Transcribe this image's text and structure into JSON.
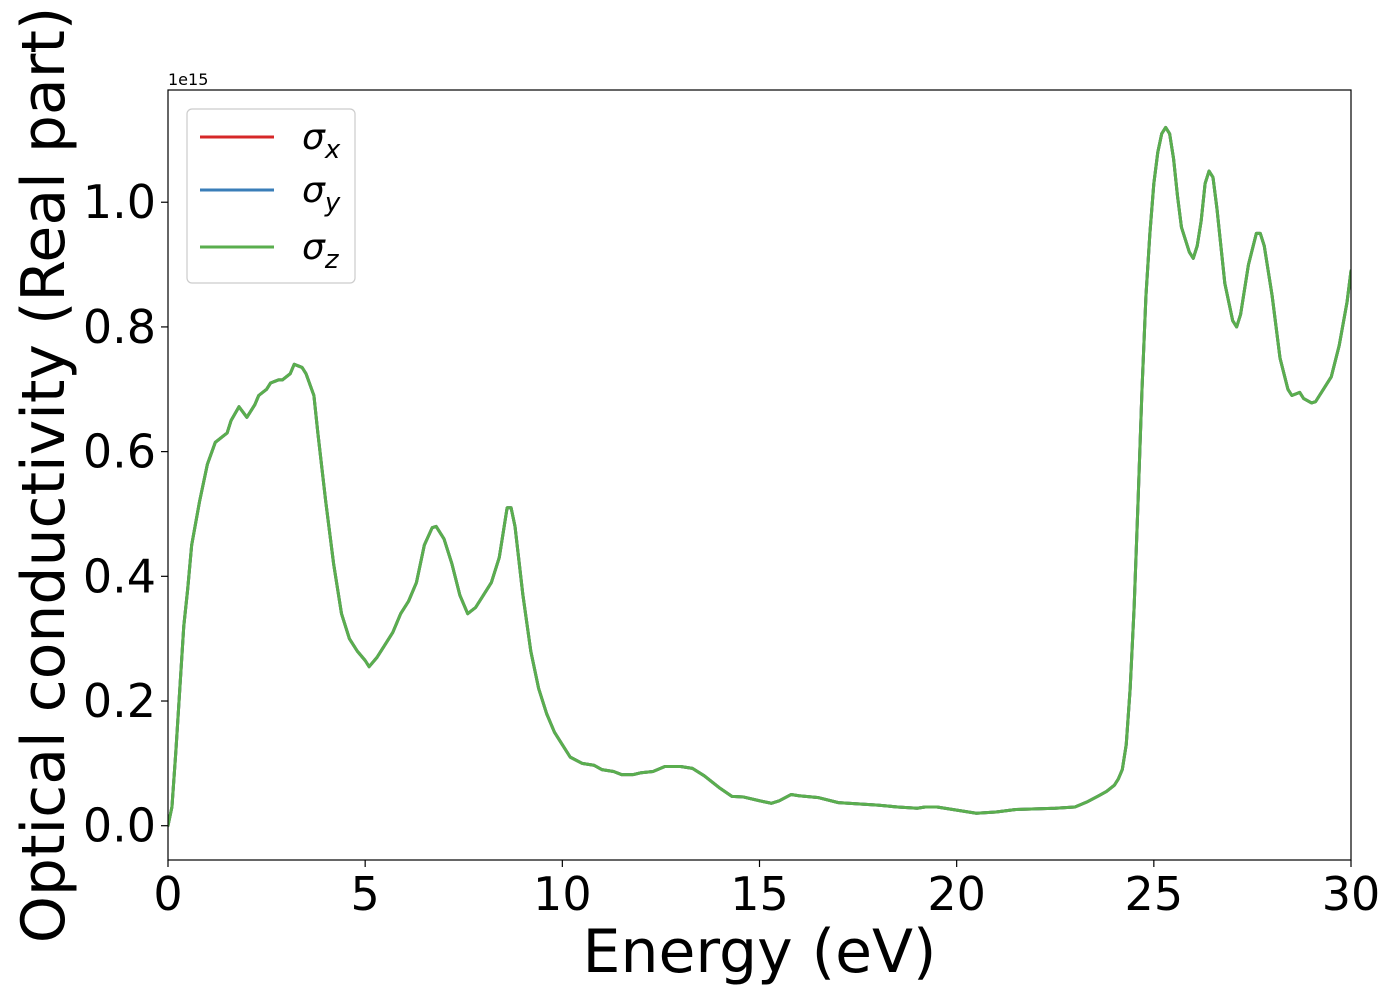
{
  "chart_data": {
    "type": "line",
    "title": "",
    "xlabel": "Energy (eV)",
    "ylabel": "Optical conductivity (Real part)",
    "offset_label": "1e15",
    "xlim": [
      0,
      30
    ],
    "ylim": [
      -0.055,
      1.18
    ],
    "x_ticks": [
      0,
      5,
      10,
      15,
      20,
      25,
      30
    ],
    "x_tick_labels": [
      "0",
      "5",
      "10",
      "15",
      "20",
      "25",
      "30"
    ],
    "y_ticks": [
      0.0,
      0.2,
      0.4,
      0.6,
      0.8,
      1.0
    ],
    "y_tick_labels": [
      "0.0",
      "0.2",
      "0.4",
      "0.6",
      "0.8",
      "1.0"
    ],
    "grid": false,
    "legend_position": "upper-left",
    "x": [
      0,
      0.1,
      0.2,
      0.3,
      0.4,
      0.5,
      0.6,
      0.8,
      1.0,
      1.2,
      1.3,
      1.5,
      1.6,
      1.8,
      2.0,
      2.2,
      2.3,
      2.5,
      2.6,
      2.8,
      2.9,
      3.1,
      3.2,
      3.4,
      3.5,
      3.7,
      3.8,
      4.0,
      4.2,
      4.4,
      4.6,
      4.8,
      5.0,
      5.1,
      5.3,
      5.5,
      5.7,
      5.9,
      6.1,
      6.3,
      6.5,
      6.7,
      6.8,
      7.0,
      7.2,
      7.4,
      7.6,
      7.8,
      8.0,
      8.2,
      8.4,
      8.6,
      8.7,
      8.8,
      9.0,
      9.2,
      9.4,
      9.6,
      9.8,
      10.0,
      10.2,
      10.5,
      10.8,
      11.0,
      11.3,
      11.5,
      11.8,
      12.0,
      12.3,
      12.6,
      13.0,
      13.3,
      13.6,
      14.0,
      14.3,
      14.6,
      15.0,
      15.3,
      15.5,
      15.8,
      16.0,
      16.5,
      17.0,
      17.5,
      18.0,
      18.5,
      19.0,
      19.2,
      19.5,
      20.0,
      20.5,
      21.0,
      21.5,
      22.0,
      22.5,
      23.0,
      23.3,
      23.6,
      23.8,
      24.0,
      24.1,
      24.2,
      24.3,
      24.4,
      24.5,
      24.6,
      24.7,
      24.8,
      24.9,
      25.0,
      25.1,
      25.2,
      25.3,
      25.4,
      25.5,
      25.6,
      25.7,
      25.9,
      26.0,
      26.1,
      26.2,
      26.3,
      26.4,
      26.5,
      26.6,
      26.7,
      26.8,
      27.0,
      27.1,
      27.2,
      27.4,
      27.6,
      27.7,
      27.8,
      28.0,
      28.2,
      28.4,
      28.5,
      28.7,
      28.8,
      29.0,
      29.1,
      29.3,
      29.5,
      29.7,
      29.9,
      30.0
    ],
    "series": [
      {
        "name": "σx",
        "legend_symbol": "σ",
        "legend_subscript": "x",
        "color": "#d62728",
        "values": [
          0.0,
          0.03,
          0.12,
          0.22,
          0.32,
          0.38,
          0.45,
          0.52,
          0.58,
          0.615,
          0.62,
          0.63,
          0.65,
          0.672,
          0.655,
          0.675,
          0.69,
          0.7,
          0.71,
          0.715,
          0.715,
          0.725,
          0.74,
          0.735,
          0.725,
          0.69,
          0.63,
          0.52,
          0.42,
          0.34,
          0.3,
          0.28,
          0.265,
          0.255,
          0.27,
          0.29,
          0.31,
          0.34,
          0.36,
          0.39,
          0.45,
          0.478,
          0.48,
          0.46,
          0.42,
          0.37,
          0.34,
          0.35,
          0.37,
          0.39,
          0.43,
          0.51,
          0.51,
          0.48,
          0.37,
          0.28,
          0.22,
          0.18,
          0.15,
          0.13,
          0.11,
          0.1,
          0.097,
          0.09,
          0.087,
          0.082,
          0.082,
          0.085,
          0.087,
          0.095,
          0.095,
          0.092,
          0.08,
          0.06,
          0.047,
          0.046,
          0.04,
          0.036,
          0.04,
          0.05,
          0.048,
          0.045,
          0.037,
          0.035,
          0.033,
          0.03,
          0.028,
          0.03,
          0.03,
          0.025,
          0.02,
          0.022,
          0.026,
          0.027,
          0.028,
          0.03,
          0.038,
          0.048,
          0.055,
          0.065,
          0.075,
          0.09,
          0.13,
          0.22,
          0.35,
          0.52,
          0.7,
          0.85,
          0.95,
          1.03,
          1.08,
          1.11,
          1.12,
          1.11,
          1.07,
          1.01,
          0.96,
          0.92,
          0.91,
          0.93,
          0.97,
          1.03,
          1.05,
          1.04,
          0.99,
          0.93,
          0.87,
          0.81,
          0.8,
          0.82,
          0.9,
          0.95,
          0.95,
          0.93,
          0.85,
          0.75,
          0.7,
          0.69,
          0.695,
          0.685,
          0.678,
          0.68,
          0.7,
          0.72,
          0.77,
          0.84,
          0.89
        ]
      },
      {
        "name": "σy",
        "legend_symbol": "σ",
        "legend_subscript": "y",
        "color": "#3a7eb8",
        "values": [
          0.0,
          0.03,
          0.12,
          0.22,
          0.32,
          0.38,
          0.45,
          0.52,
          0.58,
          0.615,
          0.62,
          0.63,
          0.65,
          0.672,
          0.655,
          0.675,
          0.69,
          0.7,
          0.71,
          0.715,
          0.715,
          0.725,
          0.74,
          0.735,
          0.725,
          0.69,
          0.63,
          0.52,
          0.42,
          0.34,
          0.3,
          0.28,
          0.265,
          0.255,
          0.27,
          0.29,
          0.31,
          0.34,
          0.36,
          0.39,
          0.45,
          0.478,
          0.48,
          0.46,
          0.42,
          0.37,
          0.34,
          0.35,
          0.37,
          0.39,
          0.43,
          0.51,
          0.51,
          0.48,
          0.37,
          0.28,
          0.22,
          0.18,
          0.15,
          0.13,
          0.11,
          0.1,
          0.097,
          0.09,
          0.087,
          0.082,
          0.082,
          0.085,
          0.087,
          0.095,
          0.095,
          0.092,
          0.08,
          0.06,
          0.047,
          0.046,
          0.04,
          0.036,
          0.04,
          0.05,
          0.048,
          0.045,
          0.037,
          0.035,
          0.033,
          0.03,
          0.028,
          0.03,
          0.03,
          0.025,
          0.02,
          0.022,
          0.026,
          0.027,
          0.028,
          0.03,
          0.038,
          0.048,
          0.055,
          0.065,
          0.075,
          0.09,
          0.13,
          0.22,
          0.35,
          0.52,
          0.7,
          0.85,
          0.95,
          1.03,
          1.08,
          1.11,
          1.12,
          1.11,
          1.07,
          1.01,
          0.96,
          0.92,
          0.91,
          0.93,
          0.97,
          1.03,
          1.05,
          1.04,
          0.99,
          0.93,
          0.87,
          0.81,
          0.8,
          0.82,
          0.9,
          0.95,
          0.95,
          0.93,
          0.85,
          0.75,
          0.7,
          0.69,
          0.695,
          0.685,
          0.678,
          0.68,
          0.7,
          0.72,
          0.77,
          0.84,
          0.89
        ]
      },
      {
        "name": "σz",
        "legend_symbol": "σ",
        "legend_subscript": "z",
        "color": "#5aae4e",
        "values": [
          0.0,
          0.03,
          0.12,
          0.22,
          0.32,
          0.38,
          0.45,
          0.52,
          0.58,
          0.615,
          0.62,
          0.63,
          0.65,
          0.672,
          0.655,
          0.675,
          0.69,
          0.7,
          0.71,
          0.715,
          0.715,
          0.725,
          0.74,
          0.735,
          0.725,
          0.69,
          0.63,
          0.52,
          0.42,
          0.34,
          0.3,
          0.28,
          0.265,
          0.255,
          0.27,
          0.29,
          0.31,
          0.34,
          0.36,
          0.39,
          0.45,
          0.478,
          0.48,
          0.46,
          0.42,
          0.37,
          0.34,
          0.35,
          0.37,
          0.39,
          0.43,
          0.51,
          0.51,
          0.48,
          0.37,
          0.28,
          0.22,
          0.18,
          0.15,
          0.13,
          0.11,
          0.1,
          0.097,
          0.09,
          0.087,
          0.082,
          0.082,
          0.085,
          0.087,
          0.095,
          0.095,
          0.092,
          0.08,
          0.06,
          0.047,
          0.046,
          0.04,
          0.036,
          0.04,
          0.05,
          0.048,
          0.045,
          0.037,
          0.035,
          0.033,
          0.03,
          0.028,
          0.03,
          0.03,
          0.025,
          0.02,
          0.022,
          0.026,
          0.027,
          0.028,
          0.03,
          0.038,
          0.048,
          0.055,
          0.065,
          0.075,
          0.09,
          0.13,
          0.22,
          0.35,
          0.52,
          0.7,
          0.85,
          0.95,
          1.03,
          1.08,
          1.11,
          1.12,
          1.11,
          1.07,
          1.01,
          0.96,
          0.92,
          0.91,
          0.93,
          0.97,
          1.03,
          1.05,
          1.04,
          0.99,
          0.93,
          0.87,
          0.81,
          0.8,
          0.82,
          0.9,
          0.95,
          0.95,
          0.93,
          0.85,
          0.75,
          0.7,
          0.69,
          0.695,
          0.685,
          0.678,
          0.68,
          0.7,
          0.72,
          0.77,
          0.84,
          0.89
        ]
      }
    ]
  }
}
